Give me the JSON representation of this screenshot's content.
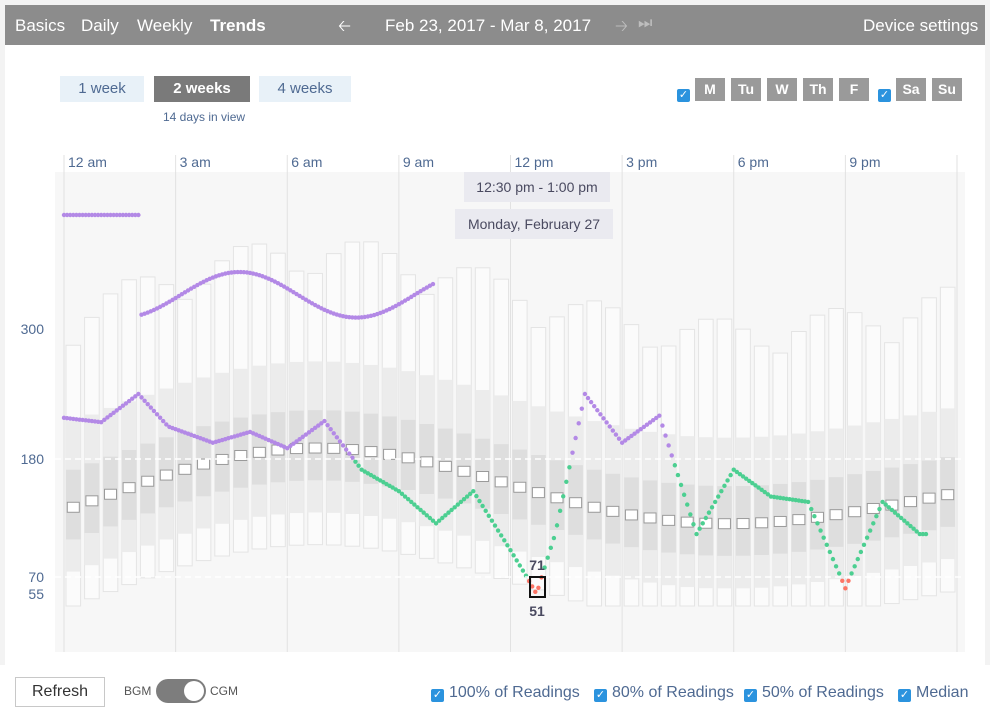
{
  "nav": {
    "tabs": [
      "Basics",
      "Daily",
      "Weekly",
      "Trends"
    ],
    "active_tab": "Trends",
    "date_range": "Feb 23, 2017 - Mar 8, 2017",
    "device_settings": "Device settings"
  },
  "range_buttons": [
    "1 week",
    "2 weeks",
    "4 weeks"
  ],
  "active_range": "2 weeks",
  "days_in_view": "14 days in view",
  "days": [
    {
      "label": "M",
      "checked": true
    },
    {
      "label": "Tu",
      "checked": true
    },
    {
      "label": "W",
      "checked": true
    },
    {
      "label": "Th",
      "checked": true
    },
    {
      "label": "F",
      "checked": true
    },
    {
      "label": "Sa",
      "checked": true
    },
    {
      "label": "Su",
      "checked": true
    }
  ],
  "time_labels": [
    "12 am",
    "3 am",
    "6 am",
    "9 am",
    "12 pm",
    "3 pm",
    "6 pm",
    "9 pm"
  ],
  "y_labels": [
    "300",
    "180",
    "70",
    "55"
  ],
  "tooltip": {
    "time_range": "12:30 pm - 1:00 pm",
    "day": "Monday, February 27",
    "high_value": "71",
    "low_value": "51"
  },
  "bottom": {
    "refresh": "Refresh",
    "bgm": "BGM",
    "cgm": "CGM",
    "legend": [
      "100% of Readings",
      "80% of Readings",
      "50% of Readings",
      "Median"
    ]
  },
  "colors": {
    "in_range": "#4ccf91",
    "high": "#b389e6",
    "low": "#fc7566",
    "checkbox": "#2b93de"
  }
}
